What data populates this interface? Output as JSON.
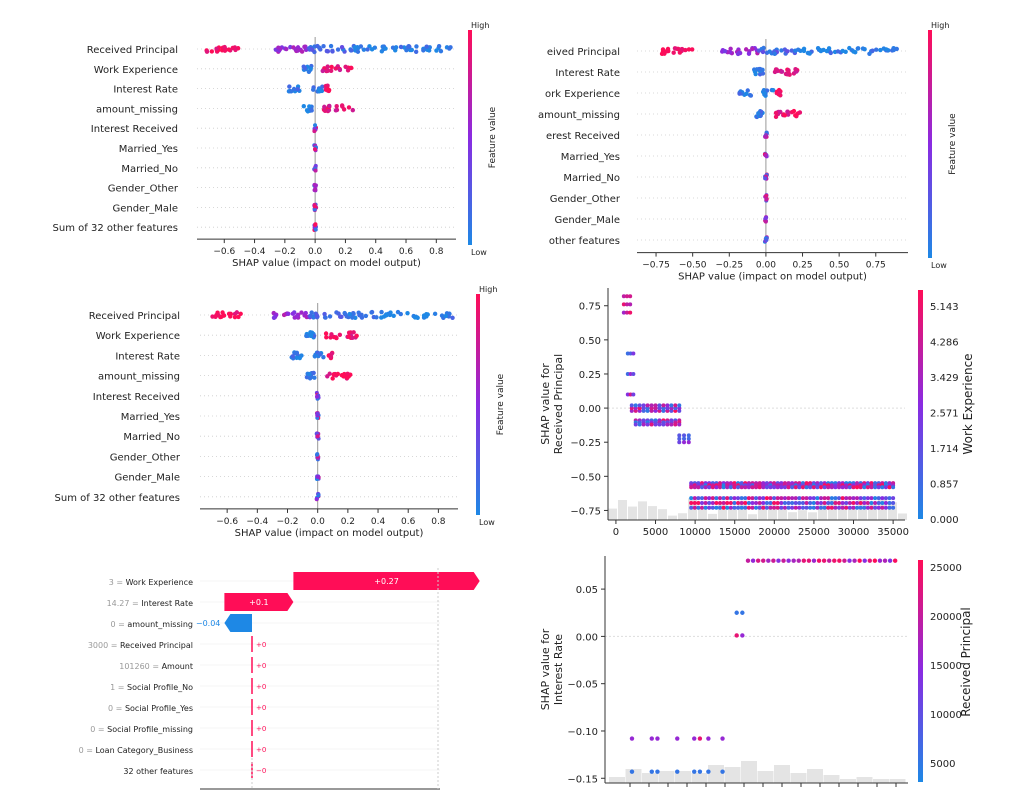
{
  "colors": {
    "low": "#1e88e5",
    "high": "#ff0d57",
    "mid": "#8a2be2",
    "axis": "#333333",
    "grid": "#cccccc",
    "hist": "#d9d9d9"
  },
  "chart_data": [
    {
      "type": "scatter",
      "variant": "shap-beeswarm",
      "features": [
        "Received Principal",
        "Work Experience",
        "Interest Rate",
        "amount_missing",
        "Interest Received",
        "Married_Yes",
        "Married_No",
        "Gender_Other",
        "Gender_Male",
        "Sum of 32 other features"
      ],
      "xlabel": "SHAP value (impact on model output)",
      "xticks": [
        "−0.6",
        "−0.4",
        "−0.2",
        "0.0",
        "0.2",
        "0.4",
        "0.6",
        "0.8"
      ],
      "xlim": [
        -0.78,
        0.93
      ],
      "colorbar": {
        "label": "Feature value",
        "high": "High",
        "low": "Low"
      }
    },
    {
      "type": "scatter",
      "variant": "shap-beeswarm",
      "features": [
        "eived Principal",
        "Interest Rate",
        "ork Experience",
        "amount_missing",
        "erest Received",
        "Married_Yes",
        "Married_No",
        "Gender_Other",
        "Gender_Male",
        "other features"
      ],
      "xlabel": "SHAP value (impact on model output)",
      "xticks": [
        "−0.75",
        "−0.50",
        "−0.25",
        "0.00",
        "0.25",
        "0.50",
        "0.75"
      ],
      "xlim": [
        -0.88,
        0.97
      ],
      "colorbar": {
        "label": "Feature value",
        "high": "High",
        "low": "Low"
      }
    },
    {
      "type": "scatter",
      "variant": "shap-beeswarm",
      "features": [
        "Received Principal",
        "Work Experience",
        "Interest Rate",
        "amount_missing",
        "Interest Received",
        "Married_Yes",
        "Married_No",
        "Gender_Other",
        "Gender_Male",
        "Sum of 32 other features"
      ],
      "xlabel": "SHAP value (impact on model output)",
      "xticks": [
        "−0.6",
        "−0.4",
        "−0.2",
        "0.0",
        "0.2",
        "0.4",
        "0.6",
        "0.8"
      ],
      "xlim": [
        -0.78,
        0.93
      ],
      "colorbar": {
        "label": "Feature value",
        "high": "High",
        "low": "Low"
      }
    },
    {
      "type": "scatter",
      "variant": "shap-dependence",
      "ylabel": "SHAP value for\nReceived Principal",
      "yticks": [
        "0.75",
        "0.50",
        "0.25",
        "0.00",
        "−0.25",
        "−0.50",
        "−0.75"
      ],
      "xticks": [
        "0",
        "5000",
        "10000",
        "15000",
        "20000",
        "25000",
        "30000",
        "35000"
      ],
      "xlim": [
        -1000,
        36500
      ],
      "ylim": [
        -0.82,
        0.88
      ],
      "colorbar": {
        "label": "Work Experience",
        "ticks": [
          "5.143",
          "4.286",
          "3.429",
          "2.571",
          "1.714",
          "0.857",
          "0.000"
        ]
      },
      "clusters": [
        {
          "x": [
            1000,
            1800
          ],
          "y": [
            0.7,
            0.82
          ]
        },
        {
          "x": [
            1500,
            2200
          ],
          "y": [
            0.1,
            0.4
          ]
        },
        {
          "x": [
            2000,
            8000
          ],
          "y": [
            -0.02,
            0.02
          ]
        },
        {
          "x": [
            2500,
            8000
          ],
          "y": [
            -0.09,
            -0.12
          ]
        },
        {
          "x": [
            8000,
            9200
          ],
          "y": [
            -0.2,
            -0.25
          ]
        },
        {
          "x": [
            9500,
            35000
          ],
          "y": [
            -0.55,
            -0.58
          ]
        },
        {
          "x": [
            9500,
            35000
          ],
          "y": [
            -0.66,
            -0.73
          ]
        }
      ]
    },
    {
      "type": "bar",
      "variant": "shap-waterfall",
      "rows": [
        {
          "value": "3",
          "feature": "Work Experience",
          "shap": 0.27,
          "label": "+0.27"
        },
        {
          "value": "14.27",
          "feature": "Interest Rate",
          "shap": 0.1,
          "label": "+0.1"
        },
        {
          "value": "0",
          "feature": "amount_missing",
          "shap": -0.04,
          "label": "−0.04"
        },
        {
          "value": "3000",
          "feature": "Received Principal",
          "shap": 0.0,
          "label": "+0"
        },
        {
          "value": "101260",
          "feature": "Amount",
          "shap": 0.0,
          "label": "+0"
        },
        {
          "value": "1",
          "feature": "Social Profile_No",
          "shap": 0.0,
          "label": "+0"
        },
        {
          "value": "0",
          "feature": "Social Profile_Yes",
          "shap": 0.0,
          "label": "+0"
        },
        {
          "value": "0",
          "feature": "Social Profile_missing",
          "shap": 0.0,
          "label": "+0"
        },
        {
          "value": "0",
          "feature": "Loan Category_Business",
          "shap": 0.0,
          "label": "+0"
        },
        {
          "value": "",
          "feature": "32 other features",
          "shap": -0.0,
          "label": "−0"
        }
      ]
    },
    {
      "type": "scatter",
      "variant": "shap-dependence",
      "ylabel": "SHAP value for\nInterest Rate",
      "yticks": [
        "0.05",
        "0.00",
        "−0.05",
        "−0.10",
        "−0.15"
      ],
      "ylim": [
        -0.155,
        0.085
      ],
      "colorbar": {
        "label": "Received Principal",
        "ticks": [
          "25000",
          "20000",
          "15000",
          "10000",
          "5000"
        ]
      },
      "points": [
        {
          "x": 0.06,
          "y": -0.108,
          "c": 0.55
        },
        {
          "x": 0.06,
          "y": -0.143,
          "c": 0.1
        },
        {
          "x": 0.13,
          "y": -0.108,
          "c": 0.55
        },
        {
          "x": 0.15,
          "y": -0.108,
          "c": 0.55
        },
        {
          "x": 0.13,
          "y": -0.143,
          "c": 0.1
        },
        {
          "x": 0.15,
          "y": -0.143,
          "c": 0.1
        },
        {
          "x": 0.22,
          "y": -0.108,
          "c": 0.55
        },
        {
          "x": 0.22,
          "y": -0.143,
          "c": 0.1
        },
        {
          "x": 0.28,
          "y": -0.108,
          "c": 0.55
        },
        {
          "x": 0.3,
          "y": -0.108,
          "c": 0.9
        },
        {
          "x": 0.28,
          "y": -0.143,
          "c": 0.1
        },
        {
          "x": 0.3,
          "y": -0.143,
          "c": 0.1
        },
        {
          "x": 0.33,
          "y": -0.108,
          "c": 0.55
        },
        {
          "x": 0.33,
          "y": -0.143,
          "c": 0.1
        },
        {
          "x": 0.38,
          "y": -0.108,
          "c": 0.55
        },
        {
          "x": 0.38,
          "y": -0.143,
          "c": 0.1
        },
        {
          "x": 0.43,
          "y": 0.025,
          "c": 0.1
        },
        {
          "x": 0.45,
          "y": 0.025,
          "c": 0.1
        },
        {
          "x": 0.43,
          "y": 0.001,
          "c": 0.9
        },
        {
          "x": 0.45,
          "y": 0.001,
          "c": 0.55
        }
      ],
      "top_row": {
        "y": 0.08,
        "x_from": 0.47,
        "x_to": 0.99
      }
    }
  ]
}
